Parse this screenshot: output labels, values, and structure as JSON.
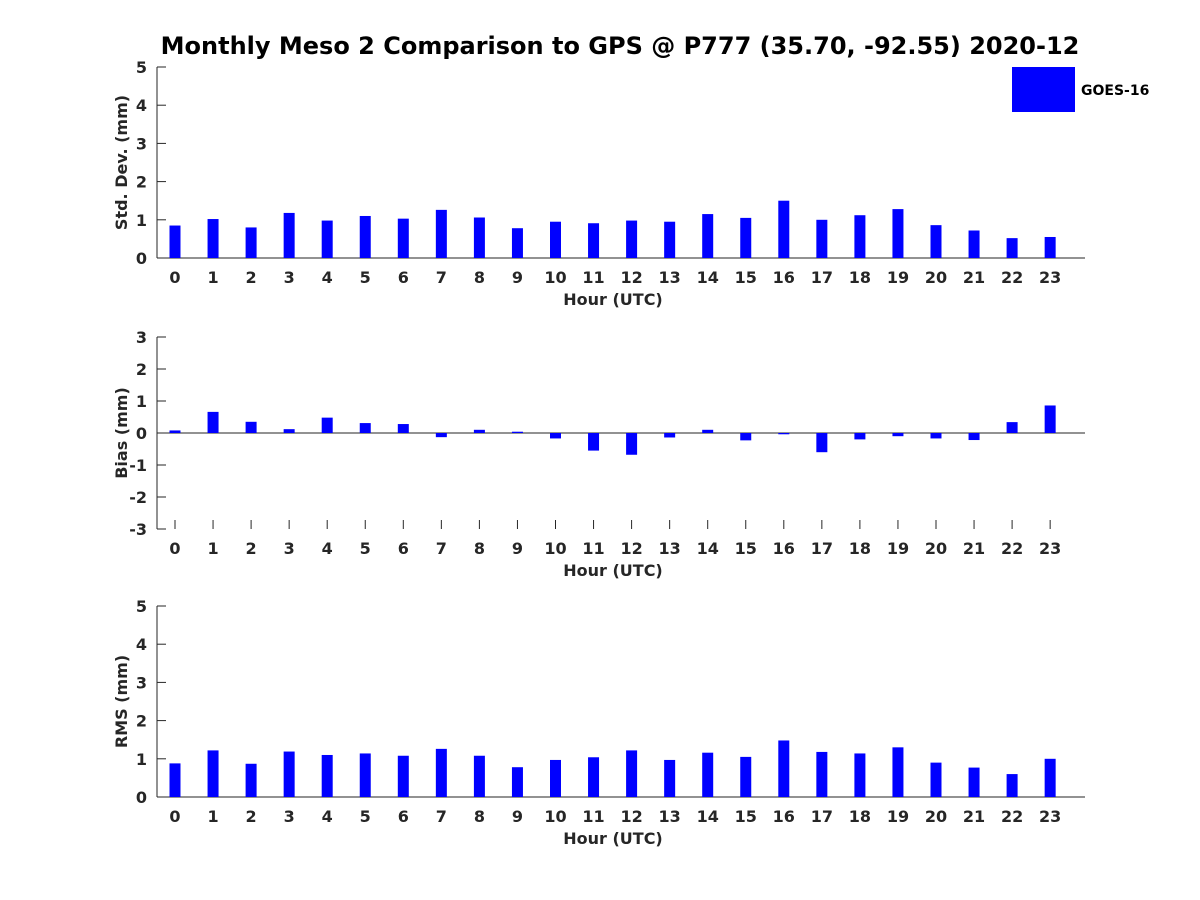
{
  "figure_title": "Monthly Meso 2 Comparison to GPS @ P777 (35.70, -92.55) 2020-12",
  "legend": {
    "label": "GOES-16",
    "color": "#0000ff"
  },
  "chart_data": [
    {
      "type": "bar",
      "xlabel": "Hour (UTC)",
      "ylabel": "Std. Dev. (mm)",
      "ylim": [
        0,
        5
      ],
      "yticks": [
        0,
        1,
        2,
        3,
        4,
        5
      ],
      "categories": [
        "0",
        "1",
        "2",
        "3",
        "4",
        "5",
        "6",
        "7",
        "8",
        "9",
        "10",
        "11",
        "12",
        "13",
        "14",
        "15",
        "16",
        "17",
        "18",
        "19",
        "20",
        "21",
        "22",
        "23"
      ],
      "series": [
        {
          "name": "GOES-16",
          "color": "#0000ff",
          "values": [
            0.85,
            1.02,
            0.8,
            1.18,
            0.98,
            1.1,
            1.03,
            1.26,
            1.06,
            0.78,
            0.95,
            0.91,
            0.98,
            0.95,
            1.15,
            1.05,
            1.5,
            1.0,
            1.12,
            1.28,
            0.86,
            0.72,
            0.52,
            0.55
          ]
        }
      ],
      "grid": false
    },
    {
      "type": "bar",
      "xlabel": "Hour (UTC)",
      "ylabel": "Bias (mm)",
      "ylim": [
        -3,
        3
      ],
      "yticks": [
        -3,
        -2,
        -1,
        0,
        1,
        2,
        3
      ],
      "categories": [
        "0",
        "1",
        "2",
        "3",
        "4",
        "5",
        "6",
        "7",
        "8",
        "9",
        "10",
        "11",
        "12",
        "13",
        "14",
        "15",
        "16",
        "17",
        "18",
        "19",
        "20",
        "21",
        "22",
        "23"
      ],
      "series": [
        {
          "name": "GOES-16",
          "color": "#0000ff",
          "values": [
            0.08,
            0.66,
            0.35,
            0.12,
            0.48,
            0.31,
            0.28,
            -0.13,
            0.1,
            0.04,
            -0.17,
            -0.55,
            -0.68,
            -0.14,
            0.1,
            -0.23,
            -0.04,
            -0.6,
            -0.2,
            -0.1,
            -0.17,
            -0.22,
            0.34,
            0.86
          ]
        }
      ],
      "grid": false
    },
    {
      "type": "bar",
      "xlabel": "Hour (UTC)",
      "ylabel": "RMS (mm)",
      "ylim": [
        0,
        5
      ],
      "yticks": [
        0,
        1,
        2,
        3,
        4,
        5
      ],
      "categories": [
        "0",
        "1",
        "2",
        "3",
        "4",
        "5",
        "6",
        "7",
        "8",
        "9",
        "10",
        "11",
        "12",
        "13",
        "14",
        "15",
        "16",
        "17",
        "18",
        "19",
        "20",
        "21",
        "22",
        "23"
      ],
      "series": [
        {
          "name": "GOES-16",
          "color": "#0000ff",
          "values": [
            0.88,
            1.22,
            0.87,
            1.19,
            1.1,
            1.14,
            1.08,
            1.26,
            1.08,
            0.78,
            0.97,
            1.04,
            1.22,
            0.97,
            1.16,
            1.05,
            1.48,
            1.18,
            1.14,
            1.3,
            0.9,
            0.77,
            0.6,
            1.0
          ]
        }
      ],
      "grid": false
    }
  ]
}
